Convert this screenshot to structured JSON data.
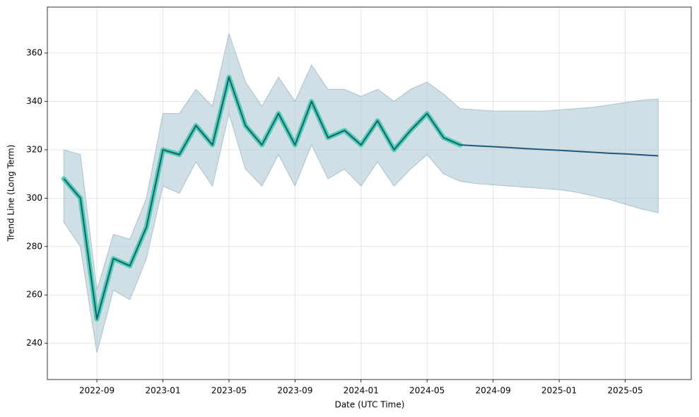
{
  "chart_data": {
    "type": "line",
    "xlabel": "Date (UTC Time)",
    "ylabel": "Trend Line (Long Term)",
    "x": [
      "2022-07",
      "2022-08",
      "2022-09",
      "2022-10",
      "2022-11",
      "2022-12",
      "2023-01",
      "2023-02",
      "2023-03",
      "2023-04",
      "2023-05",
      "2023-06",
      "2023-07",
      "2023-08",
      "2023-09",
      "2023-10",
      "2023-11",
      "2023-12",
      "2024-01",
      "2024-02",
      "2024-03",
      "2024-04",
      "2024-05",
      "2024-06",
      "2024-07",
      "2024-08",
      "2024-09",
      "2024-10",
      "2024-11",
      "2024-12",
      "2025-01",
      "2025-02",
      "2025-03",
      "2025-04",
      "2025-05",
      "2025-06",
      "2025-07"
    ],
    "series": [
      {
        "color": "#1f5a7a",
        "glow_color": "#4fd1b0",
        "values": [
          308,
          300,
          250,
          275,
          272,
          288,
          320,
          318,
          330,
          322,
          350,
          330,
          322,
          335,
          322,
          340,
          325,
          328,
          322,
          332,
          320,
          328,
          335,
          325,
          322,
          null,
          null,
          null,
          null,
          null,
          null,
          null,
          null,
          null,
          null,
          null,
          null
        ]
      },
      {
        "color": "#1f5a7a",
        "values": [
          null,
          null,
          null,
          null,
          null,
          null,
          null,
          null,
          null,
          null,
          null,
          null,
          null,
          null,
          null,
          null,
          null,
          null,
          null,
          null,
          null,
          null,
          null,
          null,
          322,
          321.6,
          321.3,
          320.9,
          320.5,
          320.1,
          319.8,
          319.4,
          319,
          318.6,
          318.3,
          317.9,
          317.5
        ]
      }
    ],
    "band": {
      "color": "#aac2d0",
      "upper": [
        320,
        318,
        262,
        285,
        283,
        300,
        335,
        335,
        345,
        338,
        368,
        348,
        338,
        350,
        340,
        355,
        345,
        345,
        342,
        345,
        340,
        345,
        348,
        343,
        337,
        336.5,
        336,
        336,
        336,
        336,
        336.5,
        337,
        337.5,
        338.5,
        339.5,
        340.5,
        341
      ],
      "lower": [
        290,
        280,
        236,
        262,
        258,
        275,
        305,
        302,
        315,
        305,
        335,
        312,
        305,
        318,
        305,
        322,
        308,
        312,
        305,
        315,
        305,
        312,
        318,
        310,
        307,
        306,
        305.5,
        305,
        304.5,
        304,
        303.5,
        302.5,
        301,
        299.5,
        297.5,
        295.5,
        294
      ]
    },
    "xlim": [
      "2022-06",
      "2025-09"
    ],
    "xticks": [
      "2022-09",
      "2023-01",
      "2023-05",
      "2023-09",
      "2024-01",
      "2024-05",
      "2024-09",
      "2025-01",
      "2025-05"
    ],
    "ylim": [
      225,
      379
    ],
    "yticks": [
      240,
      260,
      280,
      300,
      320,
      340,
      360
    ],
    "grid": true
  }
}
